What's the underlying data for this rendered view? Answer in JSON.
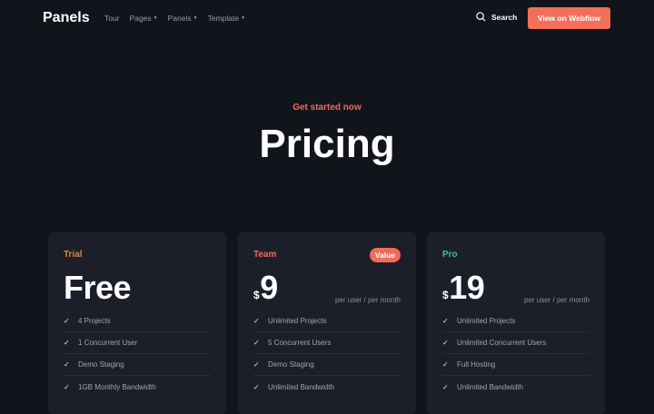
{
  "nav": {
    "logo": "Panels",
    "links": [
      {
        "label": "Tour",
        "caret": false
      },
      {
        "label": "Pages",
        "caret": true
      },
      {
        "label": "Panels",
        "caret": true
      },
      {
        "label": "Template",
        "caret": true
      }
    ],
    "search": "Search",
    "cta": "View on Webflow"
  },
  "hero": {
    "eyebrow": "Get started now",
    "title": "Pricing"
  },
  "colors": {
    "background": "#12141c",
    "card": "#1c1f29",
    "accent": "#f36f5b",
    "trial": "#e0844a",
    "team": "#f06b5a",
    "pro": "#3fbf8f"
  },
  "plans": [
    {
      "name": "Trial",
      "color": "#e0844a",
      "currency": "",
      "price": "Free",
      "per": "",
      "badge": "",
      "features": [
        "4 Projects",
        "1 Concurrent User",
        "Demo Staging",
        "1GB Monthly Bandwidth"
      ]
    },
    {
      "name": "Team",
      "color": "#f06b5a",
      "currency": "$",
      "price": "9",
      "per": "per user / per month",
      "badge": "Value",
      "features": [
        "Unlimited Projects",
        "5 Concurrent Users",
        "Demo Staging",
        "Unlimited Bandwidth"
      ]
    },
    {
      "name": "Pro",
      "color": "#3fbf8f",
      "currency": "$",
      "price": "19",
      "per": "per user / per month",
      "badge": "",
      "features": [
        "Unlimited Projects",
        "Unlimited Concurrent Users",
        "Full Hosting",
        "Unlimited Bandwidth"
      ]
    }
  ]
}
